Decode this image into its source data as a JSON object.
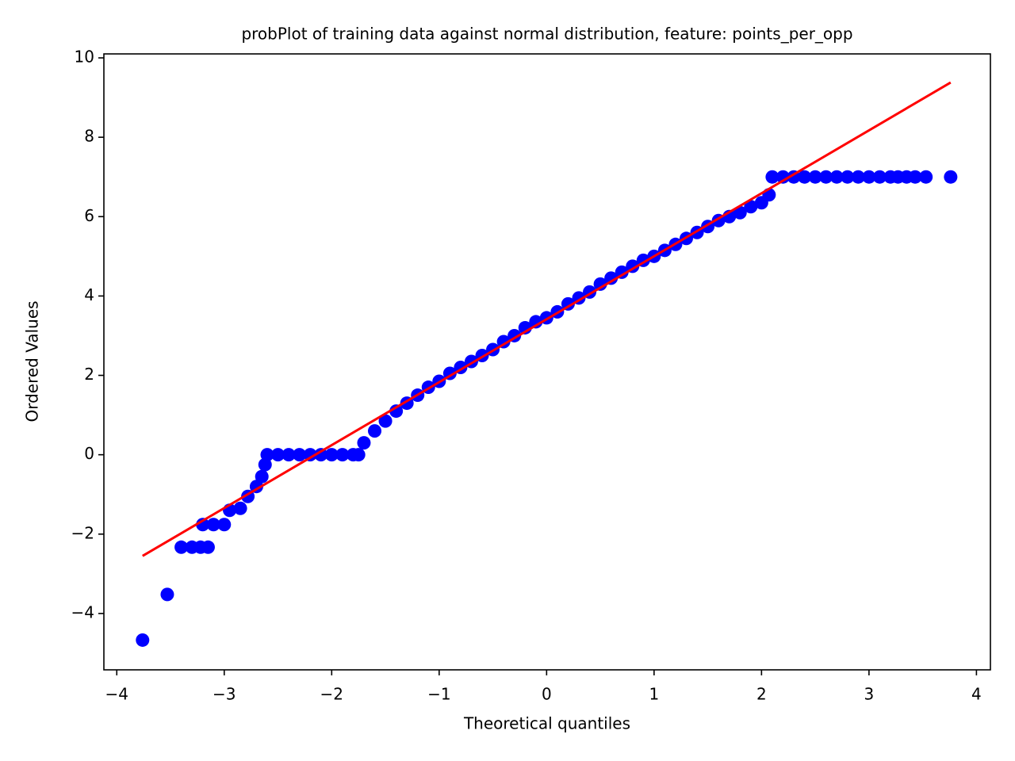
{
  "chart_data": {
    "type": "scatter",
    "title": "probPlot of training data against normal distribution, feature: points_per_opp",
    "x_label": "Theoretical quantiles",
    "y_label": "Ordered Values",
    "xlim": [
      -4.12,
      4.13
    ],
    "ylim": [
      -5.42,
      10.1
    ],
    "xticks": [
      {
        "value": -4,
        "label": "−4"
      },
      {
        "value": -3,
        "label": "−3"
      },
      {
        "value": -2,
        "label": "−2"
      },
      {
        "value": -1,
        "label": "−1"
      },
      0,
      1,
      2,
      3,
      4
    ],
    "yticks": [
      {
        "value": -4,
        "label": "−4"
      },
      {
        "value": -2,
        "label": "−2"
      },
      0,
      2,
      4,
      6,
      8,
      10
    ],
    "grid": false,
    "series": [
      {
        "type": "scatter",
        "color": "#0000ff",
        "x": [
          -3.76,
          -3.53,
          -3.4,
          -3.3,
          -3.22,
          -3.15,
          -3.2,
          -3.1,
          -3.0,
          -2.95,
          -2.85,
          -2.78,
          -2.7,
          -2.65,
          -2.62,
          -2.6,
          -2.5,
          -2.4,
          -2.3,
          -2.2,
          -2.1,
          -2.0,
          -1.9,
          -1.8,
          -1.75,
          -1.7,
          -1.6,
          -1.5,
          -1.4,
          -1.3,
          -1.2,
          -1.1,
          -1.0,
          -0.9,
          -0.8,
          -0.7,
          -0.6,
          -0.5,
          -0.4,
          -0.3,
          -0.2,
          -0.1,
          0,
          0.1,
          0.2,
          0.3,
          0.4,
          0.5,
          0.6,
          0.7,
          0.8,
          0.9,
          1.0,
          1.1,
          1.2,
          1.3,
          1.4,
          1.5,
          1.6,
          1.7,
          1.8,
          1.9,
          2.0,
          2.07,
          2.1,
          2.2,
          2.3,
          2.4,
          2.5,
          2.6,
          2.7,
          2.8,
          2.9,
          3.0,
          3.1,
          3.2,
          3.27,
          3.35,
          3.43,
          3.53,
          3.76
        ],
        "values": [
          -4.67,
          -3.52,
          -2.33,
          -2.33,
          -2.33,
          -2.33,
          -1.76,
          -1.76,
          -1.76,
          -1.4,
          -1.35,
          -1.05,
          -0.8,
          -0.55,
          -0.25,
          0,
          0,
          0,
          0,
          0,
          0,
          0,
          0,
          0,
          0,
          0.3,
          0.6,
          0.85,
          1.1,
          1.3,
          1.5,
          1.7,
          1.85,
          2.05,
          2.2,
          2.35,
          2.5,
          2.65,
          2.85,
          3.0,
          3.2,
          3.35,
          3.45,
          3.6,
          3.8,
          3.95,
          4.1,
          4.3,
          4.45,
          4.6,
          4.75,
          4.9,
          5.0,
          5.15,
          5.3,
          5.45,
          5.6,
          5.75,
          5.9,
          6.0,
          6.1,
          6.25,
          6.35,
          6.55,
          7,
          7,
          7,
          7,
          7,
          7,
          7,
          7,
          7,
          7,
          7,
          7,
          7,
          7,
          7,
          7,
          7
        ]
      },
      {
        "type": "line",
        "color": "#ff0000",
        "x": [
          -3.76,
          3.76
        ],
        "values": [
          -2.55,
          9.38
        ]
      }
    ]
  }
}
